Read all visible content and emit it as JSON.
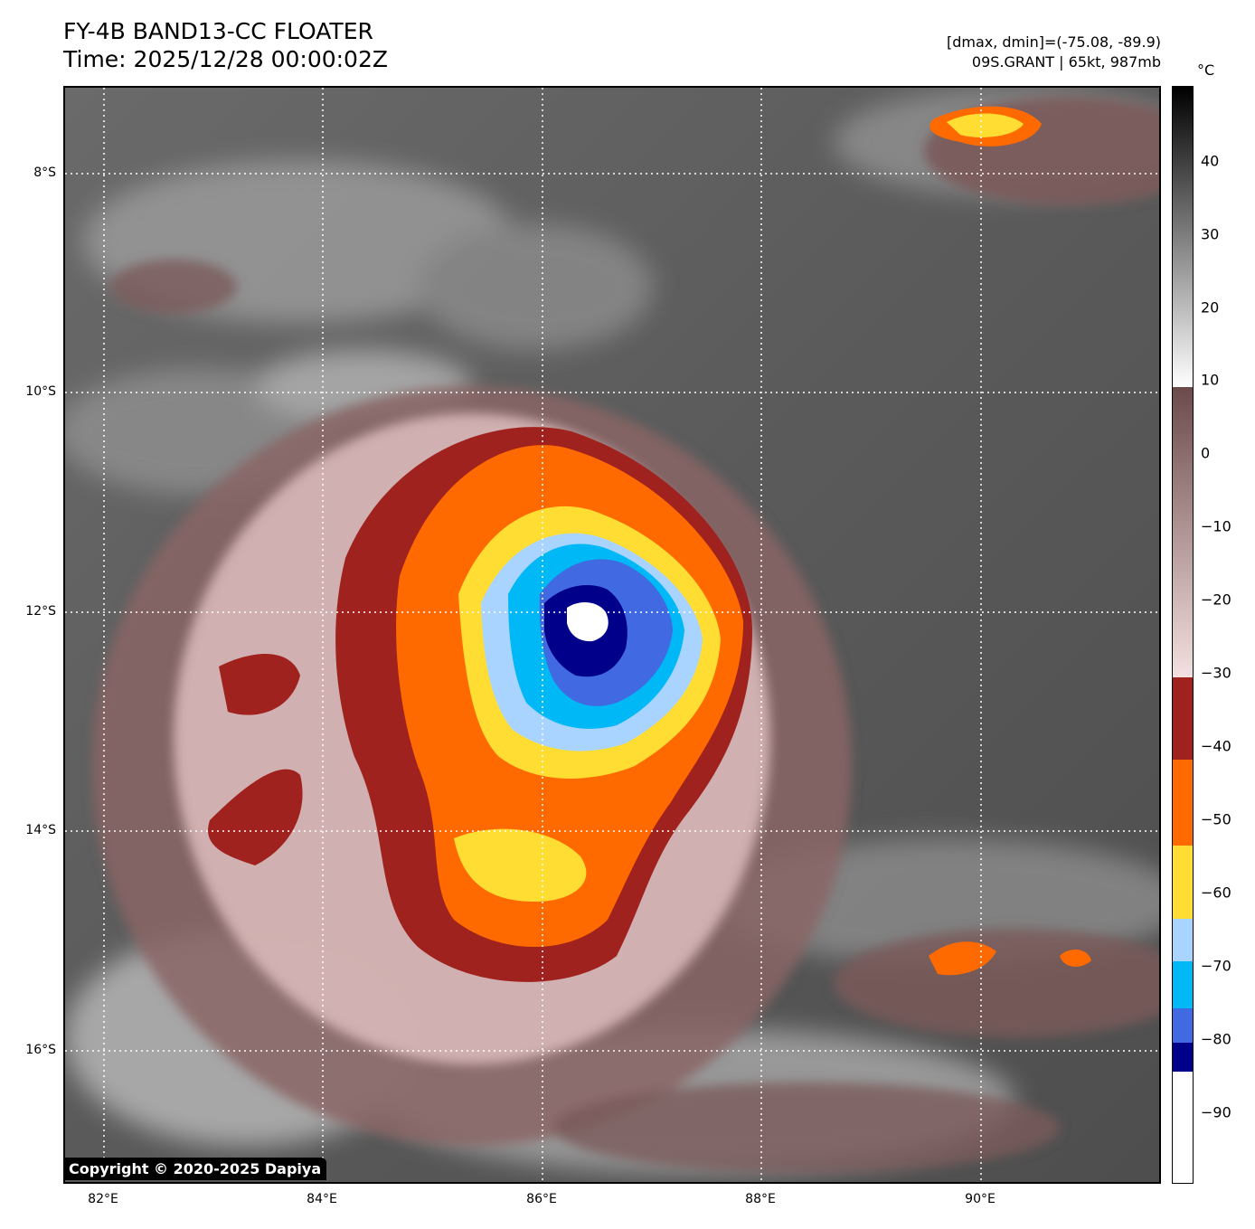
{
  "header": {
    "title": "FY-4B BAND13-CC FLOATER",
    "time": "Time: 2025/12/28 00:00:02Z",
    "range": "[dmax, dmin]=(-75.08, -89.9)",
    "storm": "09S.GRANT | 65kt, 987mb"
  },
  "map": {
    "lat_labels": [
      "8°S",
      "10°S",
      "12°S",
      "14°S",
      "16°S"
    ],
    "lon_labels": [
      "82°E",
      "84°E",
      "86°E",
      "88°E",
      "90°E"
    ],
    "storm_center": {
      "lon": 86.4,
      "lat": -12.0
    },
    "copyright": "Copyright © 2020-2025 Dapiya"
  },
  "colorbar": {
    "unit": "°C",
    "ticks": [
      "40",
      "30",
      "20",
      "10",
      "0",
      "−10",
      "−20",
      "−30",
      "−40",
      "−50",
      "−60",
      "−70",
      "−80",
      "−90"
    ],
    "tick_values": [
      40,
      30,
      20,
      10,
      0,
      -10,
      -20,
      -30,
      -40,
      -50,
      -60,
      -70,
      -80,
      -90
    ],
    "range": [
      -100,
      50
    ],
    "colors": {
      "black": "#000000",
      "gray": "#7f7f7f",
      "white": "#ffffff",
      "warm_brown": "#6b4a4a",
      "pink": "#f0d8d8",
      "dark_red": "#a0221e",
      "orange": "#ff6a00",
      "yellow": "#ffdd33",
      "light_blue": "#a8d4ff",
      "cyan": "#00b8f5",
      "royal_blue": "#4169e1",
      "navy": "#00008b"
    }
  }
}
